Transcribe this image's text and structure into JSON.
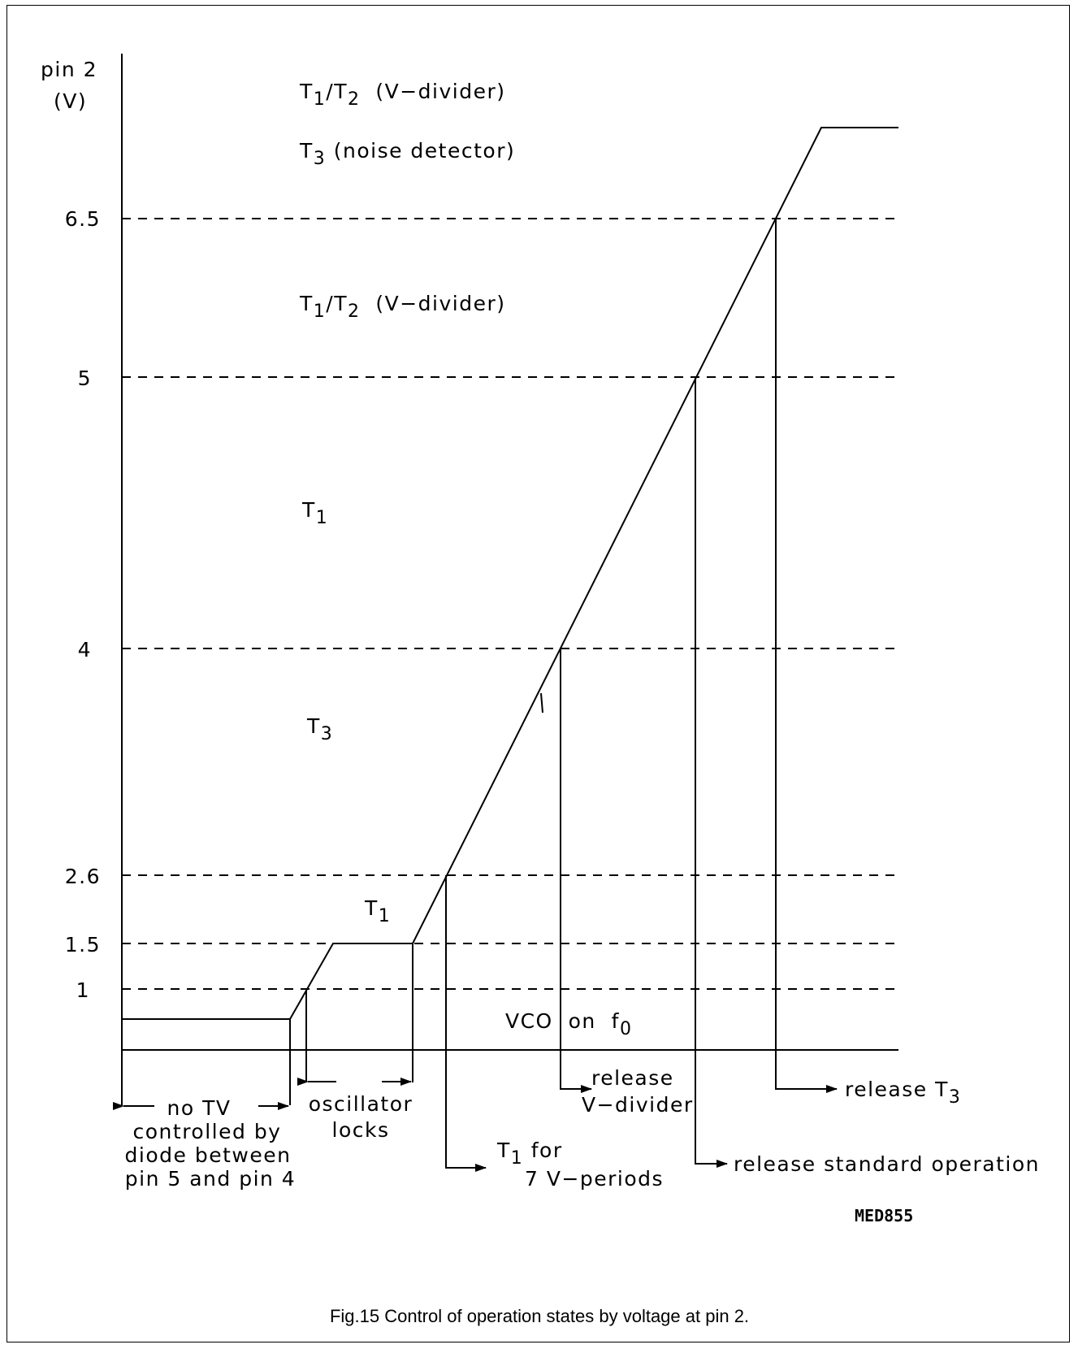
{
  "axis": {
    "label_line1": "pin 2",
    "label_line2": "(V)",
    "ticks": [
      "6.5",
      "5",
      "4",
      "2.6",
      "1.5",
      "1"
    ]
  },
  "regions": {
    "top_a": {
      "t": "T",
      "s1": "1",
      "slash": "/T",
      "s2": "2",
      "rest": "  (V−divider)"
    },
    "top_b": {
      "t": "T",
      "s": "3",
      "rest": " (noise detector)"
    },
    "mid_a": {
      "t": "T",
      "s1": "1",
      "slash": "/T",
      "s2": "2",
      "rest": "  (V−divider)"
    },
    "mid_t1": {
      "t": "T",
      "s": "1"
    },
    "mid_t3": {
      "t": "T",
      "s": "3"
    },
    "low_t1": {
      "t": "T",
      "s": "1"
    },
    "vco": {
      "text": "VCO  on  f",
      "s": "0"
    }
  },
  "annotations": {
    "no_tv": [
      "no TV",
      "controlled by",
      "diode between",
      "pin 5 and pin 4"
    ],
    "oscillator": [
      "oscillator",
      "locks"
    ],
    "t1_for": {
      "t": "T",
      "s": "1",
      "rest": " for",
      "line2": "7 V−periods"
    },
    "release_vdiv": [
      "release",
      "V−divider"
    ],
    "release_std": "release standard operation",
    "release_t3": {
      "text": "release T",
      "s": "3"
    }
  },
  "code": "MED855",
  "caption": "Fig.15  Control of operation states by voltage at pin 2."
}
